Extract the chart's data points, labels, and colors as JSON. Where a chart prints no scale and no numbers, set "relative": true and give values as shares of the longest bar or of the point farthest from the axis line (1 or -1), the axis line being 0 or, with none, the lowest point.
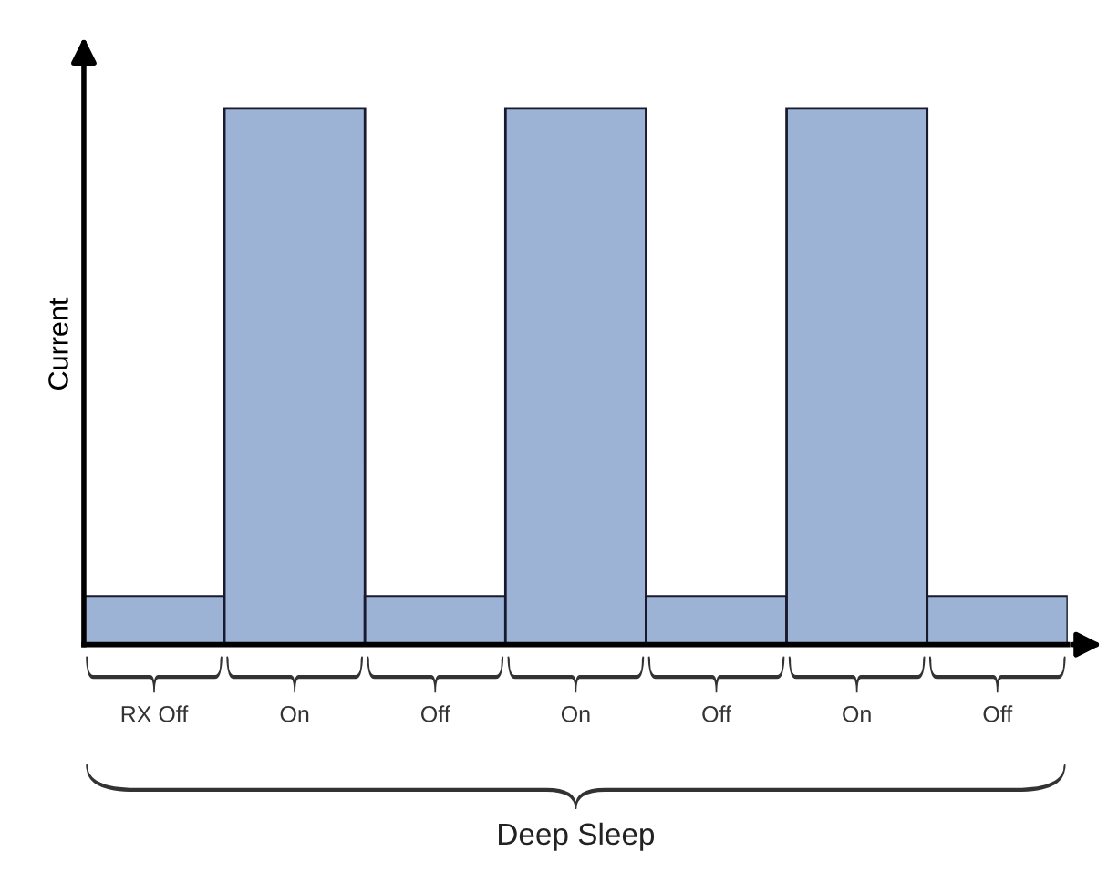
{
  "chart_data": {
    "type": "bar",
    "relative": true,
    "ylabel": "Current",
    "categories": [
      "RX Off",
      "On",
      "Off",
      "On",
      "Off",
      "On",
      "Off"
    ],
    "values": [
      0.09,
      1,
      0.09,
      1,
      0.09,
      1,
      0.09
    ],
    "color": "#9db3d6",
    "annotations": [
      "Deep Sleep"
    ]
  }
}
